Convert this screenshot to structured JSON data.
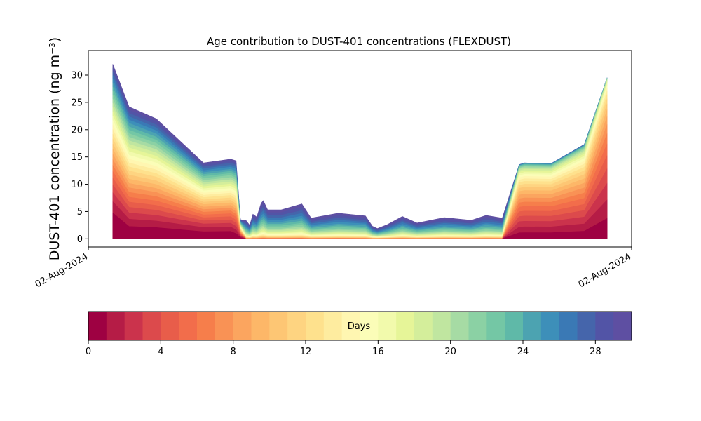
{
  "chart_data": {
    "type": "area",
    "title": "Age contribution to DUST-401 concentrations (FLEXDUST)",
    "ylabel": "DUST-401 concentration (ng m⁻³)",
    "xlabel": "",
    "ylim": [
      -1.5,
      34.5
    ],
    "yticks": [
      0,
      5,
      10,
      15,
      20,
      25,
      30
    ],
    "xtick_labels": [
      "02-Aug-2024",
      "02-Aug-2024"
    ],
    "grid": false,
    "total": [
      [
        0.045,
        32.0
      ],
      [
        0.075,
        24.2
      ],
      [
        0.125,
        22.0
      ],
      [
        0.212,
        13.9
      ],
      [
        0.262,
        14.6
      ],
      [
        0.272,
        14.3
      ],
      [
        0.28,
        3.5
      ],
      [
        0.29,
        3.4
      ],
      [
        0.297,
        2.5
      ],
      [
        0.303,
        4.5
      ],
      [
        0.31,
        4.0
      ],
      [
        0.318,
        6.5
      ],
      [
        0.322,
        7.0
      ],
      [
        0.33,
        5.3
      ],
      [
        0.355,
        5.3
      ],
      [
        0.393,
        6.4
      ],
      [
        0.41,
        3.8
      ],
      [
        0.46,
        4.7
      ],
      [
        0.51,
        4.2
      ],
      [
        0.523,
        2.3
      ],
      [
        0.532,
        1.9
      ],
      [
        0.55,
        2.6
      ],
      [
        0.578,
        4.1
      ],
      [
        0.605,
        2.9
      ],
      [
        0.655,
        3.9
      ],
      [
        0.705,
        3.4
      ],
      [
        0.732,
        4.3
      ],
      [
        0.762,
        3.8
      ],
      [
        0.793,
        13.6
      ],
      [
        0.803,
        13.9
      ],
      [
        0.852,
        13.8
      ],
      [
        0.913,
        17.3
      ],
      [
        0.955,
        29.5
      ]
    ],
    "colorbar": {
      "label": "Days",
      "min": 0,
      "max": 30,
      "ticks": [
        0,
        4,
        8,
        12,
        16,
        20,
        24,
        28
      ],
      "colors": [
        "#9e0142",
        "#b51c46",
        "#cb334c",
        "#dc4a4c",
        "#e85d4a",
        "#f26d4b",
        "#f67e4b",
        "#f99255",
        "#fba55f",
        "#fdb768",
        "#fdc674",
        "#fed481",
        "#fee18d",
        "#feec9f",
        "#fff6b1",
        "#fbfdb8",
        "#f2faac",
        "#e6f598",
        "#d4ee9b",
        "#c0e6a0",
        "#a6dba4",
        "#8bd1a4",
        "#74c7a5",
        "#5fb9a8",
        "#4ca3b1",
        "#3d8fb9",
        "#3a79b5",
        "#4565ab",
        "#5254a6",
        "#5e4fa2"
      ]
    }
  }
}
